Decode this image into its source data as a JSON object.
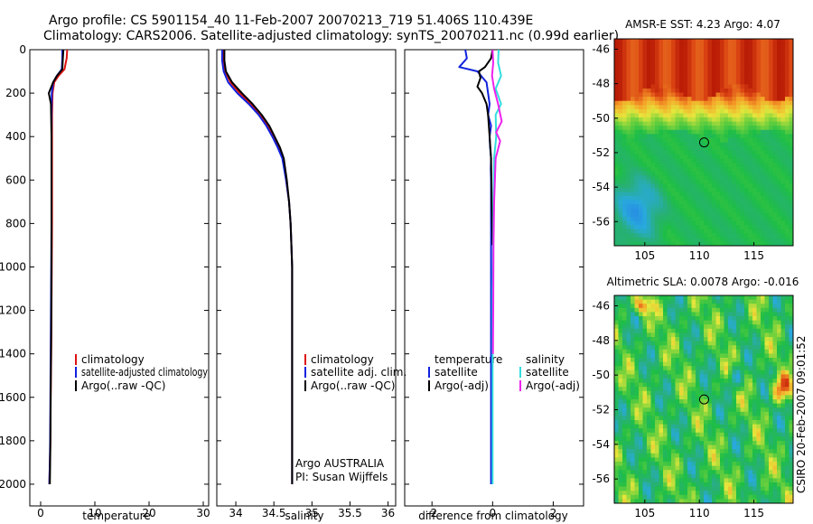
{
  "header": {
    "line1": "Argo profile: CS 5901154_40 11-Feb-2007 20070213_719 51.406S 110.439E",
    "line2": "Climatology: CARS2006. Satellite-adjusted climatology: synTS_20070211.nc (0.99d earlier)"
  },
  "colors": {
    "clim": "#dd1111",
    "sat": "#1122dd",
    "argo": "#000000",
    "sal_sat": "#33dddd",
    "sal_argo": "#ee22ee"
  },
  "chart_data": [
    {
      "id": "temperature",
      "type": "line",
      "xlabel": "temperature",
      "ylabel": "",
      "xlim": [
        -2,
        31
      ],
      "ylim": [
        0,
        2100
      ],
      "y_inverted": true,
      "xticks": [
        0,
        10,
        20,
        30
      ],
      "yticks": [
        0,
        200,
        400,
        600,
        800,
        1000,
        1200,
        1400,
        1600,
        1800,
        2000
      ],
      "legend": {
        "placement": "lower-right",
        "entries": [
          "climatology",
          "satellite-adjusted climatology",
          "Argo(..raw -QC)"
        ]
      },
      "series": [
        {
          "name": "climatology",
          "color_key": "clim",
          "x": [
            4.9,
            4.8,
            4.4,
            3.3,
            2.5,
            2.2,
            2.1,
            2.1,
            2.1,
            2.05,
            2.0,
            1.95,
            1.85,
            1.8,
            1.7,
            1.6
          ],
          "y": [
            0,
            40,
            90,
            120,
            150,
            200,
            300,
            500,
            800,
            1000,
            1200,
            1400,
            1600,
            1800,
            1900,
            2000
          ]
        },
        {
          "name": "satellite-adjusted climatology",
          "color_key": "sat",
          "x": [
            4.0,
            4.0,
            3.9,
            3.0,
            2.3,
            2.05,
            2.0,
            2.0,
            2.0,
            1.95,
            1.9,
            1.85,
            1.8,
            1.75,
            1.7,
            1.6
          ],
          "y": [
            0,
            40,
            90,
            120,
            150,
            200,
            300,
            500,
            800,
            1000,
            1200,
            1400,
            1600,
            1800,
            1900,
            2000
          ]
        },
        {
          "name": "Argo(..raw -QC)",
          "color_key": "argo",
          "x": [
            4.2,
            4.15,
            4.1,
            4.0,
            3.0,
            2.3,
            1.5,
            1.9,
            2.0,
            2.0,
            2.0,
            1.95,
            1.85,
            1.8,
            1.7
          ],
          "y": [
            0,
            20,
            40,
            90,
            120,
            150,
            200,
            250,
            400,
            700,
            1000,
            1300,
            1600,
            1800,
            2000
          ]
        }
      ]
    },
    {
      "id": "salinity",
      "type": "line",
      "xlabel": "salinity",
      "ylabel": "",
      "xlim": [
        33.75,
        36.1
      ],
      "ylim": [
        0,
        2100
      ],
      "y_inverted": true,
      "xticks": [
        34,
        34.5,
        35,
        35.5,
        36
      ],
      "xtick_labels": [
        "34",
        "34.5",
        "35",
        "35.5",
        "36"
      ],
      "legend": {
        "placement": "lower-right",
        "entries": [
          "climatology",
          "satellite adj. clim.",
          "Argo(..raw -QC)"
        ]
      },
      "annotations": [
        "Argo AUSTRALIA",
        "PI: Susan Wijffels"
      ],
      "series": [
        {
          "name": "climatology",
          "color_key": "clim",
          "x": [
            33.84,
            33.84,
            33.86,
            33.93,
            34.05,
            34.2,
            34.32,
            34.42,
            34.5,
            34.57,
            34.62,
            34.66,
            34.7,
            34.72,
            34.73,
            34.74,
            34.74,
            34.74
          ],
          "y": [
            0,
            50,
            100,
            150,
            200,
            250,
            300,
            350,
            400,
            450,
            500,
            600,
            700,
            800,
            900,
            1000,
            1500,
            2000
          ]
        },
        {
          "name": "satellite adj. clim.",
          "color_key": "sat",
          "x": [
            33.82,
            33.82,
            33.84,
            33.9,
            34.02,
            34.17,
            34.3,
            34.4,
            34.48,
            34.55,
            34.61,
            34.66,
            34.7,
            34.72,
            34.73,
            34.74,
            34.74,
            34.74
          ],
          "y": [
            0,
            50,
            100,
            150,
            200,
            250,
            300,
            350,
            400,
            450,
            500,
            600,
            700,
            800,
            900,
            1000,
            1500,
            2000
          ]
        },
        {
          "name": "Argo(..raw -QC)",
          "color_key": "argo",
          "x": [
            33.85,
            33.85,
            33.87,
            33.95,
            34.08,
            34.22,
            34.34,
            34.44,
            34.51,
            34.58,
            34.63,
            34.67,
            34.7,
            34.72,
            34.74,
            34.74
          ],
          "y": [
            0,
            50,
            100,
            150,
            200,
            250,
            300,
            350,
            400,
            450,
            500,
            600,
            700,
            800,
            1000,
            2000
          ]
        }
      ]
    },
    {
      "id": "difference",
      "type": "line",
      "xlabel": "difference from climatology",
      "ylabel": "",
      "xlim": [
        -2.9,
        3.0
      ],
      "ylim": [
        0,
        2100
      ],
      "y_inverted": true,
      "xticks": [
        -2,
        0,
        2
      ],
      "legend": {
        "placement": "lower-center",
        "headers": [
          "temperature",
          "salinity"
        ],
        "entries": [
          "satellite",
          "Argo(-adj)",
          "satellite",
          "Argo(-adj)"
        ]
      },
      "series": [
        {
          "name": "temperature satellite",
          "color_key": "sat",
          "x": [
            -0.9,
            -0.85,
            -1.1,
            -0.5,
            -0.2,
            -0.15,
            -0.1,
            -0.15,
            -0.05,
            -0.1,
            -0.08,
            -0.05,
            -0.06,
            -0.05,
            -0.05,
            -0.05,
            -0.05,
            -0.05,
            -0.05
          ],
          "y": [
            0,
            40,
            80,
            100,
            150,
            200,
            250,
            300,
            350,
            400,
            450,
            500,
            550,
            600,
            700,
            800,
            1000,
            1500,
            2000
          ]
        },
        {
          "name": "temperature Argo(-adj)",
          "color_key": "argo",
          "x": [
            0.0,
            -0.05,
            -0.25,
            -0.45,
            -0.4,
            -0.5,
            -0.35,
            -0.2,
            -0.15,
            -0.1,
            -0.05,
            -0.03,
            0.0
          ],
          "y": [
            0,
            40,
            80,
            100,
            130,
            170,
            200,
            250,
            300,
            400,
            500,
            700,
            900
          ]
        },
        {
          "name": "salinity satellite",
          "color_key": "sal_sat",
          "x": [
            0.2,
            0.18,
            0.28,
            0.1,
            0.28,
            0.1,
            0.12,
            0.05,
            0.03,
            0.02,
            0.0,
            0.0,
            0.0
          ],
          "y": [
            0,
            60,
            120,
            180,
            250,
            300,
            400,
            500,
            700,
            900,
            1100,
            1500,
            2000
          ]
        },
        {
          "name": "salinity Argo(-adj)",
          "color_key": "sal_argo",
          "x": [
            0.0,
            0.02,
            -0.02,
            0.05,
            0.18,
            0.3,
            0.12,
            0.25,
            0.1,
            0.05,
            0.03,
            0.02,
            0.01
          ],
          "y": [
            0,
            60,
            120,
            180,
            250,
            330,
            380,
            420,
            500,
            700,
            900,
            1200,
            1400
          ]
        }
      ]
    },
    {
      "id": "sst_map",
      "type": "heatmap",
      "title": "AMSR-E SST: 4.23 Argo: 4.07",
      "xlim": [
        102.2,
        118.6
      ],
      "ylim": [
        -57.4,
        -45.4
      ],
      "xticks": [
        105,
        110,
        115
      ],
      "yticks": [
        -46,
        -48,
        -50,
        -52,
        -54,
        -56
      ],
      "marker": {
        "lon": 110.439,
        "lat": -51.406
      }
    },
    {
      "id": "sla_map",
      "type": "heatmap",
      "title": "Altimetric SLA: 0.0078 Argo: -0.016",
      "xlim": [
        102.2,
        118.6
      ],
      "ylim": [
        -57.4,
        -45.4
      ],
      "xticks": [
        105,
        110,
        115
      ],
      "yticks": [
        -46,
        -48,
        -50,
        -52,
        -54,
        -56
      ],
      "marker": {
        "lon": 110.439,
        "lat": -51.406
      }
    }
  ],
  "footer": {
    "side_label": "CSIRO 20-Feb-2007 09:01:52"
  }
}
